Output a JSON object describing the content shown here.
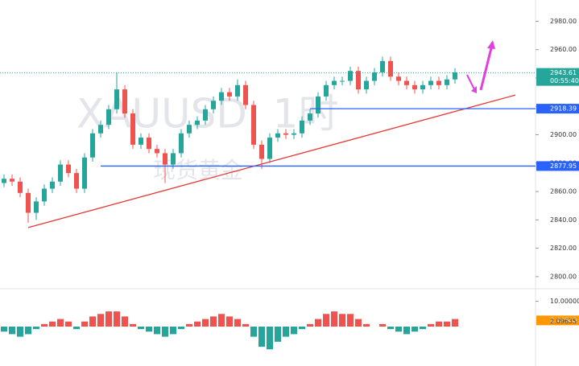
{
  "chart_data": {
    "type": "candlestick",
    "symbol_watermark": "XAUUSD, 1时",
    "name_watermark": "现货黄金",
    "open": [
      2866,
      2869,
      2867,
      2859,
      2845,
      2853,
      2862,
      2867,
      2879,
      2873,
      2862,
      2884,
      2901,
      2907,
      2918,
      2932,
      2915,
      2893,
      2898,
      2890,
      2887,
      2879,
      2887,
      2901,
      2907,
      2910,
      2918,
      2924,
      2930,
      2927,
      2935,
      2921,
      2893,
      2883,
      2898,
      2901,
      2900,
      2901,
      2910,
      2915,
      2927,
      2935,
      2938,
      2938,
      2945,
      2932,
      2938,
      2944,
      2952,
      2941,
      2938,
      2935,
      2932,
      2935,
      2938,
      2935,
      2939
    ],
    "high": [
      2872,
      2872,
      2870,
      2862,
      2856,
      2865,
      2870,
      2882,
      2882,
      2876,
      2887,
      2904,
      2910,
      2921,
      2944,
      2935,
      2918,
      2901,
      2901,
      2893,
      2890,
      2890,
      2904,
      2910,
      2913,
      2921,
      2927,
      2933,
      2933,
      2939,
      2938,
      2924,
      2896,
      2901,
      2904,
      2904,
      2904,
      2913,
      2918,
      2930,
      2938,
      2941,
      2941,
      2948,
      2948,
      2941,
      2947,
      2955,
      2955,
      2944,
      2941,
      2938,
      2938,
      2941,
      2941,
      2942,
      2947
    ],
    "low": [
      2863,
      2864,
      2856,
      2838,
      2840,
      2850,
      2859,
      2864,
      2870,
      2859,
      2859,
      2881,
      2898,
      2904,
      2915,
      2912,
      2890,
      2890,
      2887,
      2884,
      2866,
      2876,
      2884,
      2898,
      2904,
      2907,
      2915,
      2921,
      2924,
      2924,
      2918,
      2890,
      2876,
      2880,
      2895,
      2897,
      2897,
      2898,
      2907,
      2912,
      2924,
      2932,
      2935,
      2935,
      2929,
      2929,
      2935,
      2941,
      2938,
      2935,
      2932,
      2929,
      2929,
      2932,
      2932,
      2932,
      2936
    ],
    "close": [
      2869,
      2867,
      2859,
      2845,
      2853,
      2862,
      2867,
      2879,
      2873,
      2862,
      2884,
      2901,
      2907,
      2918,
      2932,
      2915,
      2893,
      2898,
      2890,
      2887,
      2879,
      2887,
      2901,
      2907,
      2910,
      2918,
      2924,
      2930,
      2927,
      2935,
      2921,
      2893,
      2883,
      2898,
      2901,
      2900,
      2901,
      2910,
      2915,
      2927,
      2935,
      2938,
      2938,
      2945,
      2932,
      2938,
      2944,
      2952,
      2941,
      2938,
      2935,
      2932,
      2935,
      2938,
      2935,
      2939,
      2944
    ],
    "up_color": "#26a69a",
    "down_color": "#ef5350",
    "ylim": [
      2792,
      2995
    ],
    "yticks": [
      {
        "value": 2800,
        "label": "2800.00"
      },
      {
        "value": 2820,
        "label": "2820.00"
      },
      {
        "value": 2840,
        "label": "2840.00"
      },
      {
        "value": 2860,
        "label": "2860.00"
      },
      {
        "value": 2880,
        "label": "2880.00"
      },
      {
        "value": 2900,
        "label": "2900.00"
      },
      {
        "value": 2920,
        "label": "2920.00"
      },
      {
        "value": 2940,
        "label": "2940.00"
      },
      {
        "value": 2960,
        "label": "2960.00"
      },
      {
        "value": 2980,
        "label": "2980.00"
      }
    ],
    "current_price": 2943.61,
    "countdown": "00:55:40",
    "levels": [
      {
        "value": 2918.39,
        "start": 38
      },
      {
        "value": 2877.95,
        "start": 12
      }
    ],
    "trendline": {
      "x": [
        3,
        63.5
      ],
      "y": [
        2834.6,
        2928
      ],
      "color": "#e53935"
    },
    "macd": {
      "histogram": [
        -2,
        -3,
        -4,
        -3,
        -1,
        1,
        2,
        3,
        2,
        -1,
        2,
        4,
        5,
        6,
        6,
        4,
        1,
        -1,
        -2,
        -3,
        -4,
        -3,
        -1,
        1,
        2,
        3,
        4,
        5,
        4,
        3,
        1,
        -4,
        -8,
        -9,
        -6,
        -4,
        -3,
        -1,
        1,
        3,
        5,
        6,
        5,
        5,
        3,
        1,
        0,
        1,
        -1,
        -2,
        -3,
        -2,
        -1,
        1,
        2,
        2,
        3
      ],
      "ylim": [
        -14,
        14
      ],
      "yticks": [
        {
          "value": 10,
          "label": "10.00000"
        }
      ],
      "macd_value": {
        "value": 2.4464,
        "label": "2.44640"
      },
      "signal_value": {
        "value": 2.09635,
        "label": "2.09635"
      }
    }
  }
}
